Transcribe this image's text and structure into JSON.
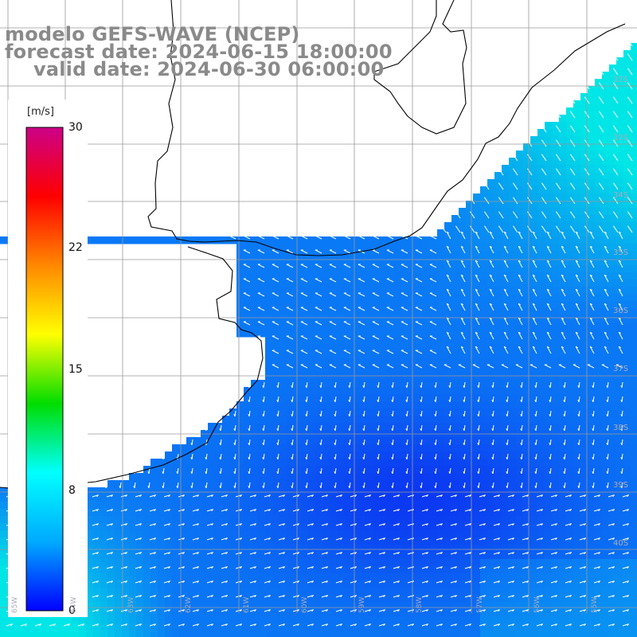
{
  "title": {
    "line1": "modelo GEFS-WAVE (NCEP)",
    "line2": "forecast date: 2024-06-15 18:00:00",
    "line3": "valid date: 2024-06-30 06:00:00"
  },
  "colorbar": {
    "unit": "[m/s]",
    "ticks": [
      "30",
      "22",
      "15",
      "8",
      "0"
    ],
    "tick_values": [
      30,
      22,
      15,
      8,
      0
    ],
    "colors": [
      "#cc0088",
      "#ff0000",
      "#ff8800",
      "#ffff00",
      "#00dd00",
      "#00ffff",
      "#00aaff",
      "#0000ff"
    ]
  },
  "lat_labels": [
    "32S",
    "33S",
    "34S",
    "35S",
    "36S",
    "37S",
    "38S",
    "39S",
    "40S"
  ],
  "lon_labels": [
    "65W",
    "64W",
    "63W",
    "62W",
    "61W",
    "60W",
    "59W",
    "58W",
    "57W",
    "56W",
    "55W"
  ],
  "colors": {
    "land": "#ffffff",
    "coast": "#000000",
    "grid": "#9a9a9a",
    "ocean_low": "#0b3ff2",
    "ocean_mid": "#0a7ff5",
    "ocean_high": "#00e6e6",
    "arrow": "#ffffff"
  }
}
